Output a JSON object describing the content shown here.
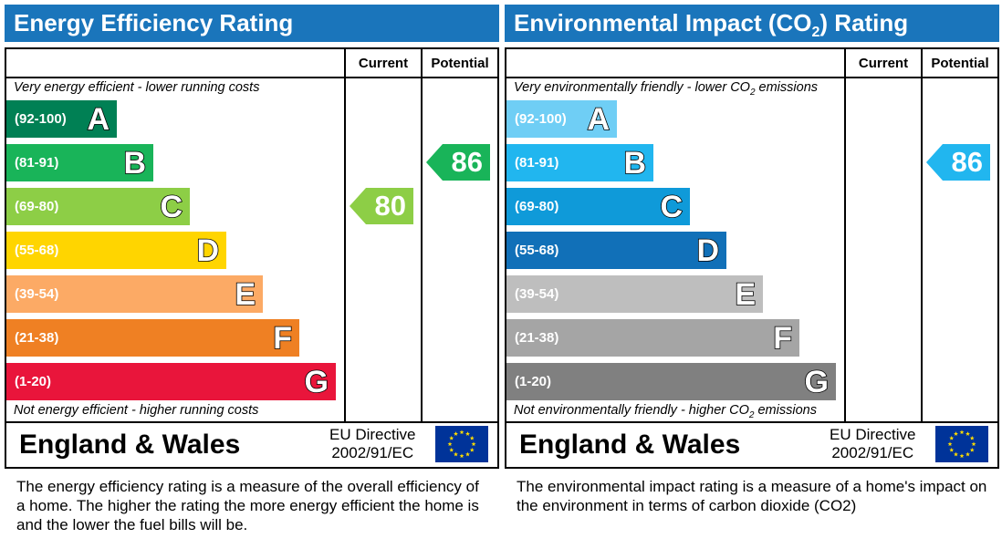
{
  "theme": {
    "title_bg": "#1a75bb",
    "eer_colors": [
      "#008054",
      "#19b459",
      "#8dce46",
      "#ffd500",
      "#fcaa65",
      "#ef8023",
      "#e9153b"
    ],
    "ei_colors": [
      "#6fcef5",
      "#21b6ef",
      "#0f9ad9",
      "#1170b8",
      "#bebebe",
      "#a5a5a5",
      "#808080"
    ],
    "eu_flag_bg": "#003399",
    "eu_star": "#ffdd00"
  },
  "eer": {
    "title": "Energy Efficiency Rating",
    "col_current": "Current",
    "col_potential": "Potential",
    "top_note": "Very energy efficient - lower running costs",
    "bottom_note": "Not energy efficient - higher running costs",
    "region": "England & Wales",
    "directive_line1": "EU Directive",
    "directive_line2": "2002/91/EC",
    "description": "The energy efficiency rating is a measure of the overall efficiency of a home.  The higher the rating the more energy efficient the home is and the lower the fuel bills will be."
  },
  "ei": {
    "title": "Environmental Impact (CO",
    "title_sub": "2",
    "title_end": ") Rating",
    "col_current": "Current",
    "col_potential": "Potential",
    "top_note": "Very environmentally friendly - lower CO",
    "top_note_sub": "2",
    "top_note_end": " emissions",
    "bottom_note": "Not environmentally friendly - higher CO",
    "bottom_note_sub": "2",
    "bottom_note_end": " emissions",
    "region": "England & Wales",
    "directive_line1": "EU Directive",
    "directive_line2": "2002/91/EC",
    "description": "The environmental impact rating is a measure of a home's impact on the environment in terms of carbon dioxide (CO2)"
  },
  "chart_data": [
    {
      "type": "bar",
      "title": "Energy Efficiency Rating",
      "categories": [
        "A",
        "B",
        "C",
        "D",
        "E",
        "F",
        "G"
      ],
      "ranges": [
        "(92-100)",
        "(81-91)",
        "(69-80)",
        "(55-68)",
        "(39-54)",
        "(21-38)",
        "(1-20)"
      ],
      "current": 80,
      "current_band": "C",
      "potential": 86,
      "potential_band": "B"
    },
    {
      "type": "bar",
      "title": "Environmental Impact (CO2) Rating",
      "categories": [
        "A",
        "B",
        "C",
        "D",
        "E",
        "F",
        "G"
      ],
      "ranges": [
        "(92-100)",
        "(81-91)",
        "(69-80)",
        "(55-68)",
        "(39-54)",
        "(21-38)",
        "(1-20)"
      ],
      "current": null,
      "current_band": null,
      "potential": 86,
      "potential_band": "B"
    }
  ]
}
